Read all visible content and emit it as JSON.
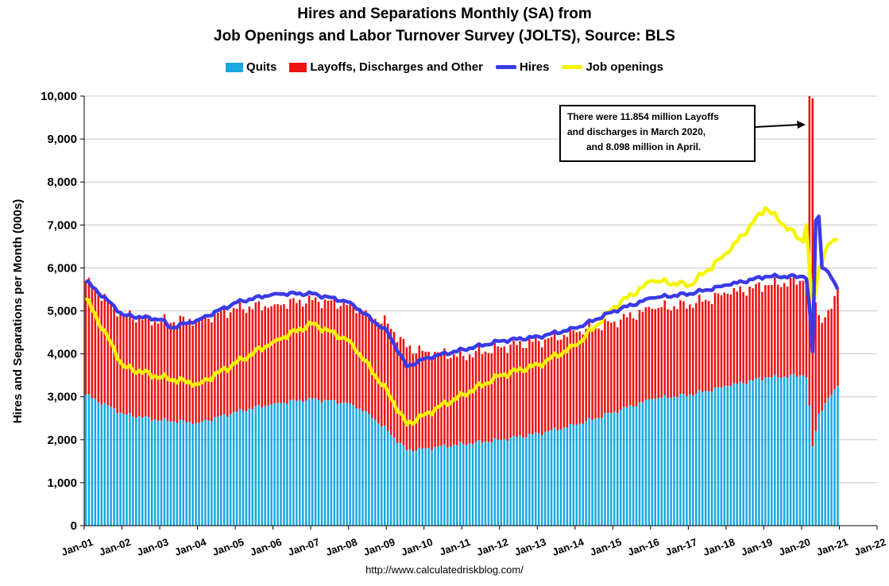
{
  "header": {
    "title_line1": "Hires and Separations Monthly (SA) from",
    "title_line2": "Job Openings and Labor Turnover Survey (JOLTS), Source: BLS"
  },
  "legend": [
    {
      "label": "Quits",
      "color": "#1aa8e0",
      "kind": "box"
    },
    {
      "label": "Layoffs, Discharges and Other",
      "color": "#ee1111",
      "kind": "box"
    },
    {
      "label": "Hires",
      "color": "#3a3ae8",
      "kind": "line"
    },
    {
      "label": "Job openings",
      "color": "#f5f500",
      "kind": "line"
    }
  ],
  "annotation": {
    "line1": "There were 11.854 million Layoffs",
    "line2": "and discharges in March 2020,",
    "line3": "and 8.098 million in April."
  },
  "source": "http://www.calculatedriskblog.com/",
  "chart_data": {
    "type": "bar",
    "stacked": true,
    "ylabel": "Hires and Separations per Month (000s)",
    "xlabel": "",
    "ylim": [
      0,
      10000
    ],
    "yticks": [
      "0",
      "1,000",
      "2,000",
      "3,000",
      "4,000",
      "5,000",
      "6,000",
      "7,000",
      "8,000",
      "9,000",
      "10,000"
    ],
    "x_range": [
      "2001-01",
      "2022-01"
    ],
    "x_tick_labels": [
      "Jan-01",
      "Jan-02",
      "Jan-03",
      "Jan-04",
      "Jan-05",
      "Jan-06",
      "Jan-07",
      "Jan-08",
      "Jan-09",
      "Jan-10",
      "Jan-11",
      "Jan-12",
      "Jan-13",
      "Jan-14",
      "Jan-15",
      "Jan-16",
      "Jan-17",
      "Jan-18",
      "Jan-19",
      "Jan-20",
      "Jan-21",
      "Jan-22"
    ],
    "grid": true,
    "legend_position": "top",
    "series": [
      {
        "name": "Quits",
        "type": "bar",
        "color": "#1aa8e0",
        "anchors": [
          [
            "2001-01",
            3050
          ],
          [
            "2002-01",
            2600
          ],
          [
            "2003-01",
            2450
          ],
          [
            "2004-01",
            2400
          ],
          [
            "2005-01",
            2650
          ],
          [
            "2006-01",
            2850
          ],
          [
            "2007-01",
            2950
          ],
          [
            "2008-01",
            2850
          ],
          [
            "2008-07",
            2600
          ],
          [
            "2009-01",
            2200
          ],
          [
            "2009-07",
            1750
          ],
          [
            "2010-01",
            1800
          ],
          [
            "2011-01",
            1900
          ],
          [
            "2012-01",
            2000
          ],
          [
            "2013-01",
            2150
          ],
          [
            "2014-01",
            2350
          ],
          [
            "2015-01",
            2650
          ],
          [
            "2016-01",
            2950
          ],
          [
            "2017-01",
            3050
          ],
          [
            "2018-01",
            3250
          ],
          [
            "2019-01",
            3450
          ],
          [
            "2020-01",
            3500
          ],
          [
            "2020-02",
            3450
          ],
          [
            "2020-03",
            2800
          ],
          [
            "2020-04",
            1850
          ],
          [
            "2020-05",
            2200
          ],
          [
            "2020-06",
            2600
          ],
          [
            "2020-08",
            2850
          ],
          [
            "2020-10",
            3050
          ],
          [
            "2020-12",
            3250
          ]
        ]
      },
      {
        "name": "Layoffs, Discharges and Other",
        "type": "bar",
        "color": "#ee1111",
        "anchors": [
          [
            "2001-01",
            2650
          ],
          [
            "2002-01",
            2300
          ],
          [
            "2003-01",
            2300
          ],
          [
            "2004-01",
            2400
          ],
          [
            "2005-01",
            2400
          ],
          [
            "2006-01",
            2300
          ],
          [
            "2007-01",
            2300
          ],
          [
            "2008-01",
            2300
          ],
          [
            "2008-07",
            2300
          ],
          [
            "2009-01",
            2500
          ],
          [
            "2009-07",
            2400
          ],
          [
            "2010-01",
            2250
          ],
          [
            "2011-01",
            2050
          ],
          [
            "2012-01",
            2150
          ],
          [
            "2013-01",
            2150
          ],
          [
            "2014-01",
            2150
          ],
          [
            "2015-01",
            2100
          ],
          [
            "2016-01",
            2100
          ],
          [
            "2017-01",
            2100
          ],
          [
            "2018-01",
            2150
          ],
          [
            "2019-01",
            2150
          ],
          [
            "2020-01",
            2200
          ],
          [
            "2020-02",
            2150
          ],
          [
            "2020-03",
            11854
          ],
          [
            "2020-04",
            8098
          ],
          [
            "2020-05",
            3000
          ],
          [
            "2020-06",
            2300
          ],
          [
            "2020-08",
            2000
          ],
          [
            "2020-10",
            2000
          ],
          [
            "2020-12",
            2250
          ]
        ]
      },
      {
        "name": "Hires",
        "type": "line",
        "color": "#3a3ae8",
        "anchors": [
          [
            "2001-01",
            5700
          ],
          [
            "2002-01",
            4900
          ],
          [
            "2003-01",
            4800
          ],
          [
            "2003-04",
            4600
          ],
          [
            "2004-01",
            4800
          ],
          [
            "2005-01",
            5200
          ],
          [
            "2006-01",
            5400
          ],
          [
            "2007-01",
            5400
          ],
          [
            "2008-01",
            5200
          ],
          [
            "2009-01",
            4500
          ],
          [
            "2009-07",
            3700
          ],
          [
            "2010-01",
            3900
          ],
          [
            "2011-01",
            4100
          ],
          [
            "2012-01",
            4300
          ],
          [
            "2013-01",
            4400
          ],
          [
            "2014-01",
            4600
          ],
          [
            "2015-01",
            5000
          ],
          [
            "2016-01",
            5300
          ],
          [
            "2017-01",
            5400
          ],
          [
            "2018-01",
            5600
          ],
          [
            "2019-01",
            5800
          ],
          [
            "2020-01",
            5800
          ],
          [
            "2020-02",
            5750
          ],
          [
            "2020-03",
            5100
          ],
          [
            "2020-04",
            4050
          ],
          [
            "2020-05",
            7100
          ],
          [
            "2020-06",
            7200
          ],
          [
            "2020-07",
            6000
          ],
          [
            "2020-09",
            5900
          ],
          [
            "2020-12",
            5500
          ]
        ]
      },
      {
        "name": "Job openings",
        "type": "line",
        "color": "#f5f500",
        "anchors": [
          [
            "2001-01",
            5300
          ],
          [
            "2002-01",
            3700
          ],
          [
            "2003-01",
            3450
          ],
          [
            "2004-01",
            3300
          ],
          [
            "2005-01",
            3800
          ],
          [
            "2006-01",
            4300
          ],
          [
            "2007-01",
            4700
          ],
          [
            "2008-01",
            4300
          ],
          [
            "2009-01",
            3100
          ],
          [
            "2009-07",
            2350
          ],
          [
            "2010-01",
            2600
          ],
          [
            "2011-01",
            3050
          ],
          [
            "2012-01",
            3500
          ],
          [
            "2013-01",
            3750
          ],
          [
            "2014-01",
            4200
          ],
          [
            "2015-01",
            5100
          ],
          [
            "2016-01",
            5700
          ],
          [
            "2017-01",
            5600
          ],
          [
            "2018-01",
            6350
          ],
          [
            "2019-01",
            7400
          ],
          [
            "2020-01",
            6600
          ],
          [
            "2020-02",
            7000
          ],
          [
            "2020-03",
            6000
          ],
          [
            "2020-04",
            5000
          ],
          [
            "2020-06",
            6000
          ],
          [
            "2020-08",
            6400
          ],
          [
            "2020-10",
            6600
          ],
          [
            "2020-12",
            6650
          ]
        ]
      }
    ]
  }
}
